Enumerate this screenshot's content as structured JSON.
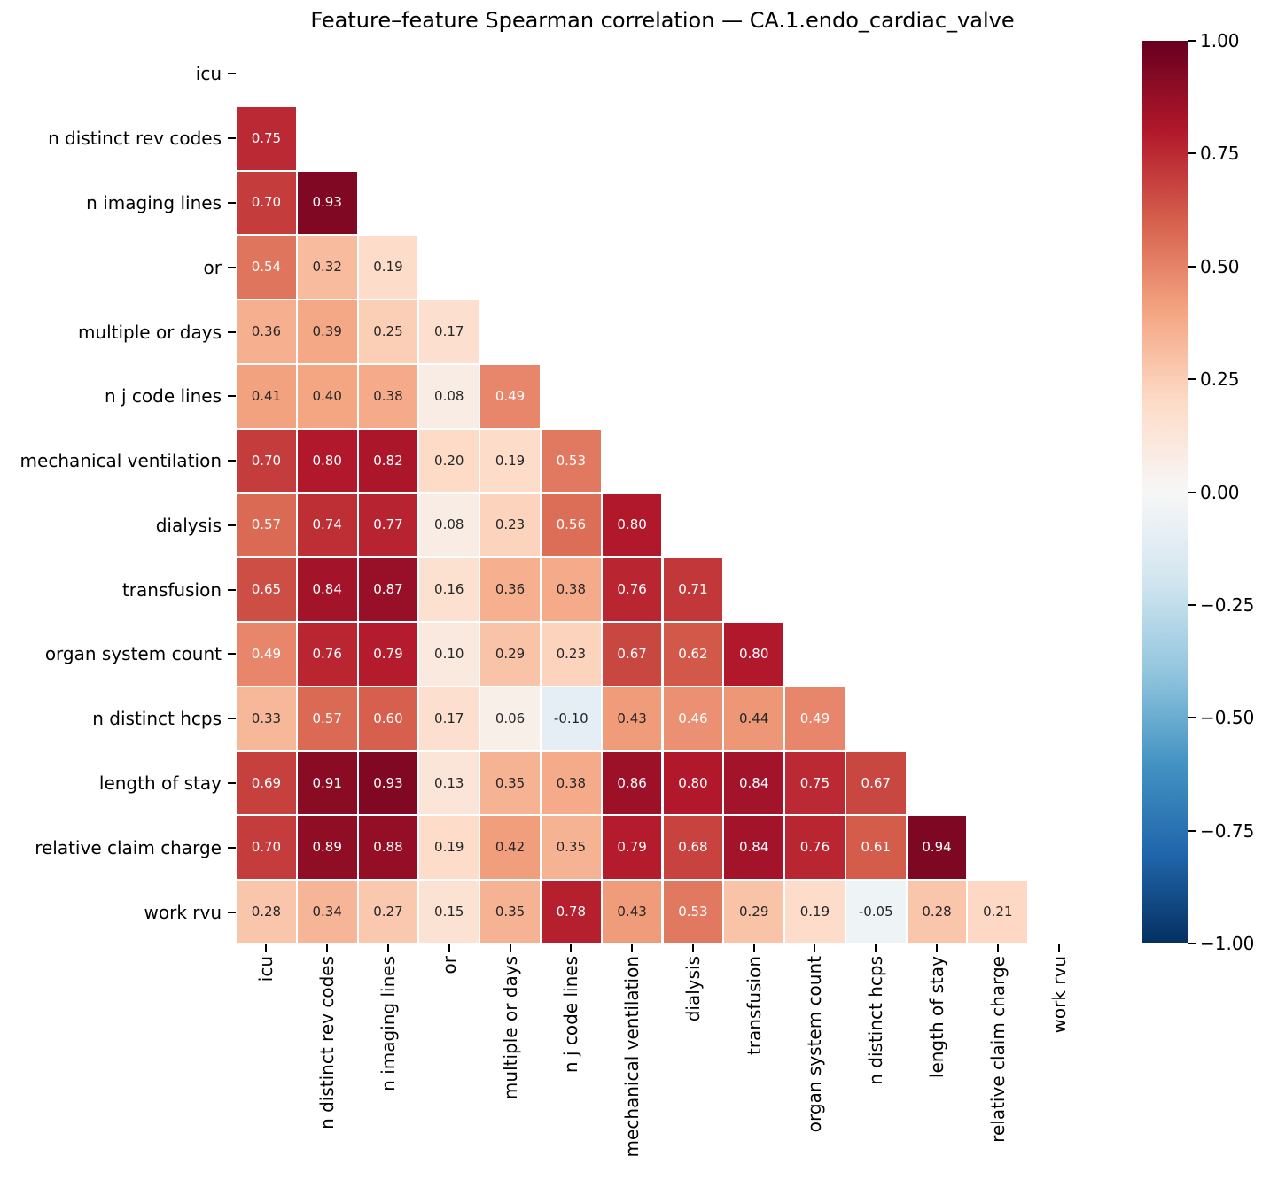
{
  "title": "Feature–feature Spearman correlation — CA.1.endo_cardiac_valve",
  "chart_data": {
    "type": "heatmap",
    "title": "Feature–feature Spearman correlation — CA.1.endo_cardiac_valve",
    "subtitle": "",
    "triangle": "lower",
    "diagonal_masked": true,
    "features": [
      "icu",
      "n distinct rev codes",
      "n imaging lines",
      "or",
      "multiple or days",
      "n j code lines",
      "mechanical ventilation",
      "dialysis",
      "transfusion",
      "organ system count",
      "n distinct hcps",
      "length of stay",
      "relative claim charge",
      "work rvu"
    ],
    "values_by_row": [
      [],
      [
        0.75
      ],
      [
        0.7,
        0.93
      ],
      [
        0.54,
        0.32,
        0.19
      ],
      [
        0.36,
        0.39,
        0.25,
        0.17
      ],
      [
        0.41,
        0.4,
        0.38,
        0.08,
        0.49
      ],
      [
        0.7,
        0.8,
        0.82,
        0.2,
        0.19,
        0.53
      ],
      [
        0.57,
        0.74,
        0.77,
        0.08,
        0.23,
        0.56,
        0.8
      ],
      [
        0.65,
        0.84,
        0.87,
        0.16,
        0.36,
        0.38,
        0.76,
        0.71
      ],
      [
        0.49,
        0.76,
        0.79,
        0.1,
        0.29,
        0.23,
        0.67,
        0.62,
        0.8
      ],
      [
        0.33,
        0.57,
        0.6,
        0.17,
        0.06,
        -0.1,
        0.43,
        0.46,
        0.44,
        0.49
      ],
      [
        0.69,
        0.91,
        0.93,
        0.13,
        0.35,
        0.38,
        0.86,
        0.8,
        0.84,
        0.75,
        0.67
      ],
      [
        0.7,
        0.89,
        0.88,
        0.19,
        0.42,
        0.35,
        0.79,
        0.68,
        0.84,
        0.76,
        0.61,
        0.94
      ],
      [
        0.28,
        0.34,
        0.27,
        0.15,
        0.35,
        0.78,
        0.43,
        0.53,
        0.29,
        0.19,
        -0.05,
        0.28,
        0.21
      ]
    ],
    "value_format": ".2f",
    "colormap": {
      "name": "RdBu_r",
      "vmin": -1,
      "vmax": 1,
      "anchors": [
        "#053061",
        "#2166ac",
        "#4393c3",
        "#92c5de",
        "#d1e5f0",
        "#f7f7f7",
        "#fddbc7",
        "#f4a582",
        "#d6604d",
        "#b2182b",
        "#67001f"
      ]
    },
    "annotation_text_colors": {
      "dark": "#262626",
      "light": "#ffffff"
    },
    "colorbar_ticks": [
      1.0,
      0.75,
      0.5,
      0.25,
      0.0,
      -0.25,
      -0.5,
      -0.75,
      -1.0
    ],
    "colorbar_tick_labels": [
      "1.00",
      "0.75",
      "0.50",
      "0.25",
      "0.00",
      "−0.25",
      "−0.50",
      "−0.75",
      "−1.00"
    ],
    "legend_position": "right-colorbar",
    "grid": false
  }
}
